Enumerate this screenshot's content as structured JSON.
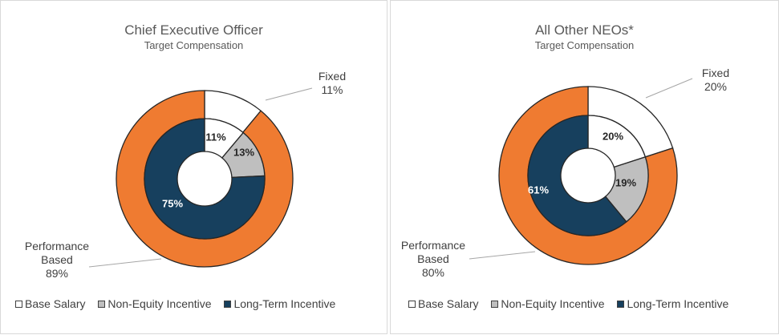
{
  "chart_data": [
    {
      "type": "donut",
      "title": "Chief Executive Officer",
      "subtitle": "Target Compensation",
      "inner_ring": {
        "categories": [
          "Base Salary",
          "Non-Equity Incentive",
          "Long-Term Incentive"
        ],
        "values": [
          11,
          13,
          75
        ],
        "labels": [
          "11%",
          "13%",
          "75%"
        ]
      },
      "outer_ring": {
        "categories": [
          "Fixed",
          "Performance Based"
        ],
        "values": [
          11,
          89
        ],
        "annotations": [
          {
            "name": "Fixed",
            "value": "11%"
          },
          {
            "name_lines": [
              "Performance",
              "Based"
            ],
            "value": "89%"
          }
        ]
      },
      "legend": [
        "Base Salary",
        "Non-Equity Incentive",
        "Long-Term Incentive"
      ]
    },
    {
      "type": "donut",
      "title": "All Other NEOs*",
      "subtitle": "Target Compensation",
      "inner_ring": {
        "categories": [
          "Base Salary",
          "Non-Equity Incentive",
          "Long-Term Incentive"
        ],
        "values": [
          20,
          19,
          61
        ],
        "labels": [
          "20%",
          "19%",
          "61%"
        ]
      },
      "outer_ring": {
        "categories": [
          "Fixed",
          "Performance Based"
        ],
        "values": [
          20,
          80
        ],
        "annotations": [
          {
            "name": "Fixed",
            "value": "20%"
          },
          {
            "name_lines": [
              "Performance",
              "Based"
            ],
            "value": "80%"
          }
        ]
      },
      "legend": [
        "Base Salary",
        "Non-Equity Incentive",
        "Long-Term Incentive"
      ]
    }
  ],
  "colors": {
    "base_salary": "#ffffff",
    "non_equity": "#bfbfbf",
    "long_term": "#17405e",
    "fixed": "#ffffff",
    "performance": "#ef7b31",
    "outline": "#262626",
    "leader": "#a6a6a6"
  }
}
